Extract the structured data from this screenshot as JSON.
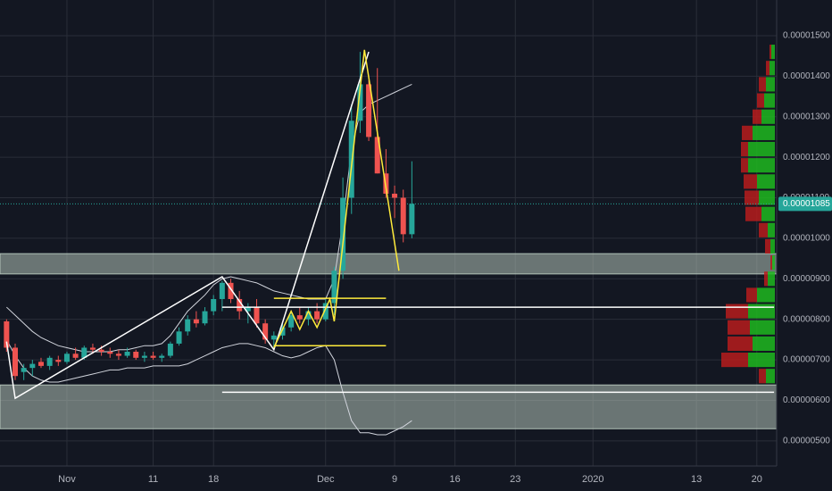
{
  "chart_data": {
    "type": "candlestick",
    "up_color": "#26a69a",
    "down_color": "#ef5350",
    "x": [
      -7,
      -6,
      -5,
      -4,
      -3,
      -2,
      -1,
      0,
      1,
      2,
      3,
      4,
      5,
      6,
      7,
      8,
      9,
      10,
      11,
      12,
      13,
      14,
      15,
      16,
      17,
      18,
      19,
      20,
      21,
      22,
      23,
      24,
      25,
      26,
      27,
      28,
      29,
      30,
      31,
      32,
      33,
      34,
      35,
      36,
      37,
      38,
      39,
      40
    ],
    "open": [
      7.95e-06,
      7.3e-06,
      6.7e-06,
      6.8e-06,
      6.95e-06,
      6.85e-06,
      7e-06,
      6.95e-06,
      7.15e-06,
      7.05e-06,
      7.3e-06,
      7.25e-06,
      7.2e-06,
      7.15e-06,
      7.1e-06,
      7.2e-06,
      7.05e-06,
      7.1e-06,
      7.05e-06,
      7.1e-06,
      7.4e-06,
      7.7e-06,
      8e-06,
      7.9e-06,
      8.2e-06,
      8.5e-06,
      8.9e-06,
      8.5e-06,
      8.2e-06,
      8.3e-06,
      7.9e-06,
      7.5e-06,
      7.6e-06,
      7.8e-06,
      8.1e-06,
      8e-06,
      8.2e-06,
      8e-06,
      8.4e-06,
      9.2e-06,
      1.1e-05,
      1.29e-05,
      1.38e-05,
      1.25e-05,
      1.16e-05,
      1.11e-05,
      1.1e-05,
      1.01e-05
    ],
    "high": [
      8e-06,
      7.4e-06,
      6.9e-06,
      7e-06,
      7.05e-06,
      7.1e-06,
      7.1e-06,
      7.2e-06,
      7.3e-06,
      7.35e-06,
      7.4e-06,
      7.35e-06,
      7.3e-06,
      7.25e-06,
      7.3e-06,
      7.25e-06,
      7.2e-06,
      7.2e-06,
      7.15e-06,
      7.45e-06,
      7.8e-06,
      8.1e-06,
      8.2e-06,
      8.3e-06,
      8.6e-06,
      8.95e-06,
      9e-06,
      8.7e-06,
      8.4e-06,
      8.5e-06,
      8e-06,
      7.7e-06,
      7.9e-06,
      8.2e-06,
      8.3e-06,
      8.3e-06,
      8.4e-06,
      8.5e-06,
      9.3e-06,
      1.15e-05,
      1.33e-05,
      1.46e-05,
      1.39e-05,
      1.42e-05,
      1.22e-05,
      1.13e-05,
      1.12e-05,
      1.19e-05
    ],
    "low": [
      7.2e-06,
      6.5e-06,
      6.5e-06,
      6.6e-06,
      6.8e-06,
      6.75e-06,
      6.85e-06,
      6.9e-06,
      7e-06,
      7e-06,
      7.15e-06,
      7.1e-06,
      7.05e-06,
      7e-06,
      7.05e-06,
      7e-06,
      6.95e-06,
      7e-06,
      6.95e-06,
      7.05e-06,
      7.35e-06,
      7.6e-06,
      7.8e-06,
      7.85e-06,
      8.1e-06,
      8.2e-06,
      8.4e-06,
      8e-06,
      7.9e-06,
      7.8e-06,
      7.4e-06,
      7.25e-06,
      7.5e-06,
      7.7e-06,
      7.9e-06,
      7.85e-06,
      7.9e-06,
      7.95e-06,
      8.1e-06,
      9e-06,
      1.06e-05,
      1.26e-05,
      1.24e-05,
      1.16e-05,
      1.1e-05,
      1.05e-05,
      9.9e-06,
      1e-05
    ],
    "close": [
      7.3e-06,
      6.6e-06,
      6.8e-06,
      6.9e-06,
      6.85e-06,
      7.05e-06,
      6.95e-06,
      7.15e-06,
      7.05e-06,
      7.3e-06,
      7.25e-06,
      7.2e-06,
      7.15e-06,
      7.1e-06,
      7.2e-06,
      7.05e-06,
      7.1e-06,
      7.05e-06,
      7.1e-06,
      7.4e-06,
      7.7e-06,
      8e-06,
      7.9e-06,
      8.2e-06,
      8.5e-06,
      8.9e-06,
      8.5e-06,
      8.2e-06,
      8.3e-06,
      7.9e-06,
      7.5e-06,
      7.6e-06,
      7.8e-06,
      8.1e-06,
      8e-06,
      8.2e-06,
      8e-06,
      8.4e-06,
      9.2e-06,
      1.1e-05,
      1.29e-05,
      1.38e-05,
      1.25e-05,
      1.16e-05,
      1.11e-05,
      1.1e-05,
      1.01e-05,
      1.085e-05
    ],
    "price_label": "0.00001085",
    "xlim": [
      -7.76,
      82.3
    ],
    "xticks": [
      {
        "value": 0,
        "label": "Nov"
      },
      {
        "value": 10,
        "label": "11"
      },
      {
        "value": 17,
        "label": "18"
      },
      {
        "value": 30,
        "label": "Dec"
      },
      {
        "value": 38,
        "label": "9"
      },
      {
        "value": 45,
        "label": "16"
      },
      {
        "value": 52,
        "label": "23"
      },
      {
        "value": 61,
        "label": "2020"
      },
      {
        "value": 73,
        "label": "13"
      },
      {
        "value": 80,
        "label": "20"
      }
    ],
    "ylim": [
      4.38e-06,
      1.588e-05
    ],
    "yticks": [
      {
        "value": 5e-06,
        "label": "0.00000500"
      },
      {
        "value": 6e-06,
        "label": "0.00000600"
      },
      {
        "value": 7e-06,
        "label": "0.00000700"
      },
      {
        "value": 8e-06,
        "label": "0.00000800"
      },
      {
        "value": 9e-06,
        "label": "0.00000900"
      },
      {
        "value": 1e-05,
        "label": "0.00001000"
      },
      {
        "value": 1.1e-05,
        "label": "0.00001100"
      },
      {
        "value": 1.2e-05,
        "label": "0.00001200"
      },
      {
        "value": 1.3e-05,
        "label": "0.00001300"
      },
      {
        "value": 1.4e-05,
        "label": "0.00001400"
      },
      {
        "value": 1.5e-05,
        "label": "0.00001500"
      }
    ],
    "grid": true,
    "zones": {
      "color": "#b2c2b8",
      "ranges": [
        [
          9.12e-06,
          9.62e-06
        ],
        [
          5.3e-06,
          6.38e-06
        ]
      ]
    },
    "bands": {
      "color": "#d1d4dc",
      "upper": [
        8.3e-06,
        8.1e-06,
        7.9e-06,
        7.7e-06,
        7.55e-06,
        7.45e-06,
        7.35e-06,
        7.3e-06,
        7.25e-06,
        7.2e-06,
        7.2e-06,
        7.2e-06,
        7.2e-06,
        7.25e-06,
        7.25e-06,
        7.3e-06,
        7.35e-06,
        7.35e-06,
        7.4e-06,
        7.6e-06,
        7.9e-06,
        8.2e-06,
        8.4e-06,
        8.6e-06,
        8.85e-06,
        9e-06,
        9.05e-06,
        9e-06,
        8.95e-06,
        8.9e-06,
        8.8e-06,
        8.7e-06,
        8.65e-06,
        8.6e-06,
        8.55e-06,
        8.5e-06,
        8.5e-06,
        8.5e-06,
        9e-06,
        1.04e-05,
        1.22e-05,
        1.31e-05,
        1.33e-05,
        1.34e-05,
        1.35e-05,
        1.36e-05,
        1.37e-05,
        1.38e-05
      ],
      "lower": [
        7.5e-06,
        7.1e-06,
        6.8e-06,
        6.6e-06,
        6.5e-06,
        6.45e-06,
        6.45e-06,
        6.5e-06,
        6.55e-06,
        6.6e-06,
        6.65e-06,
        6.7e-06,
        6.75e-06,
        6.75e-06,
        6.8e-06,
        6.8e-06,
        6.8e-06,
        6.85e-06,
        6.85e-06,
        6.85e-06,
        6.85e-06,
        6.9e-06,
        7e-06,
        7.1e-06,
        7.2e-06,
        7.3e-06,
        7.35e-06,
        7.4e-06,
        7.4e-06,
        7.35e-06,
        7.3e-06,
        7.2e-06,
        7.1e-06,
        7.05e-06,
        7.1e-06,
        7.2e-06,
        7.3e-06,
        7.35e-06,
        7e-06,
        6.2e-06,
        5.5e-06,
        5.2e-06,
        5.2e-06,
        5.15e-06,
        5.15e-06,
        5.25e-06,
        5.35e-06,
        5.5e-06
      ]
    },
    "drawings": [
      {
        "color": "#ffffff",
        "x": [
          -7,
          -6,
          18,
          24,
          35
        ],
        "y": [
          7.45e-06,
          6.05e-06,
          9.05e-06,
          7.25e-06,
          1.46e-05
        ]
      },
      {
        "color": "#ffffff",
        "x": [
          18,
          82
        ],
        "y": [
          8.3e-06,
          8.3e-06
        ]
      },
      {
        "color": "#ffffff",
        "x": [
          18,
          82
        ],
        "y": [
          6.2e-06,
          6.2e-06
        ]
      },
      {
        "color": "#ffeb3b",
        "x": [
          24,
          26,
          27,
          28,
          29,
          30.5,
          31,
          34.5,
          38.5
        ],
        "y": [
          7.3e-06,
          8.2e-06,
          7.75e-06,
          8.2e-06,
          7.8e-06,
          8.5e-06,
          7.95e-06,
          1.465e-05,
          9.2e-06
        ]
      },
      {
        "color": "#ffeb3b",
        "x": [
          24,
          37
        ],
        "y": [
          8.52e-06,
          8.52e-06
        ]
      },
      {
        "color": "#ffeb3b",
        "x": [
          24,
          37
        ],
        "y": [
          7.35e-06,
          7.35e-06
        ]
      }
    ],
    "volume_profile": {
      "up_color": "#1fb81f",
      "down_color": "#b71c1c",
      "prices": [
        6.6e-06,
        7e-06,
        7.4e-06,
        7.8e-06,
        8.2e-06,
        8.6e-06,
        9e-06,
        9.4e-06,
        9.8e-06,
        1.02e-05,
        1.06e-05,
        1.1e-05,
        1.14e-05,
        1.18e-05,
        1.22e-05,
        1.26e-05,
        1.3e-05,
        1.34e-05,
        1.38e-05,
        1.42e-05,
        1.46e-05
      ],
      "up": [
        10,
        30,
        25,
        28,
        30,
        20,
        8,
        3,
        5,
        8,
        15,
        18,
        20,
        30,
        30,
        25,
        15,
        12,
        10,
        6,
        4
      ],
      "down": [
        8,
        30,
        28,
        25,
        25,
        12,
        4,
        2,
        6,
        10,
        18,
        16,
        15,
        8,
        8,
        12,
        10,
        8,
        8,
        4,
        2
      ]
    }
  }
}
